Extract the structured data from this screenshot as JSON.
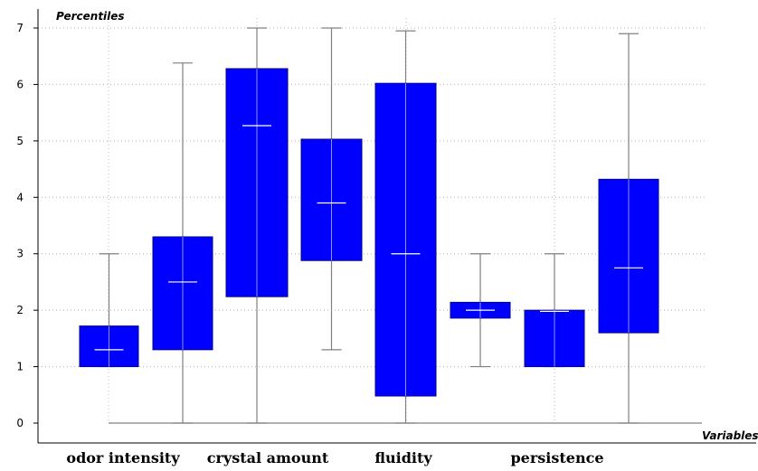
{
  "chart_data": {
    "type": "boxplot",
    "title": "",
    "ylabel": "Percentiles",
    "xlabel": "Variables",
    "ylim": [
      0,
      7
    ],
    "yticks": [
      0,
      1,
      2,
      3,
      4,
      5,
      6,
      7
    ],
    "grid": true,
    "category_labels": [
      "odor intensity",
      "crystal amount",
      "fluidity",
      "persistence"
    ],
    "boxes": [
      {
        "min": 1.0,
        "q1": 1.0,
        "median": 1.3,
        "q3": 1.72,
        "max": 3.0
      },
      {
        "min": 0.0,
        "q1": 1.3,
        "median": 2.5,
        "q3": 3.3,
        "max": 6.38
      },
      {
        "min": 0.0,
        "q1": 2.24,
        "median": 5.27,
        "q3": 6.28,
        "max": 7.0
      },
      {
        "min": 1.3,
        "q1": 2.88,
        "median": 3.9,
        "q3": 5.03,
        "max": 7.0
      },
      {
        "min": 0.0,
        "q1": 0.48,
        "median": 3.0,
        "q3": 6.02,
        "max": 6.95
      },
      {
        "min": 1.0,
        "q1": 1.86,
        "median": 2.0,
        "q3": 2.14,
        "max": 3.0
      },
      {
        "min": 1.0,
        "q1": 1.0,
        "median": 1.98,
        "q3": 2.0,
        "max": 3.0
      },
      {
        "min": 0.0,
        "q1": 1.6,
        "median": 2.75,
        "q3": 4.32,
        "max": 6.9
      }
    ],
    "colors": {
      "box_fill": "#0000FF",
      "box_stroke": "#00008B",
      "median": "#FFFFFF",
      "whisker": "#808080",
      "grid": "#B4B4B4"
    }
  }
}
